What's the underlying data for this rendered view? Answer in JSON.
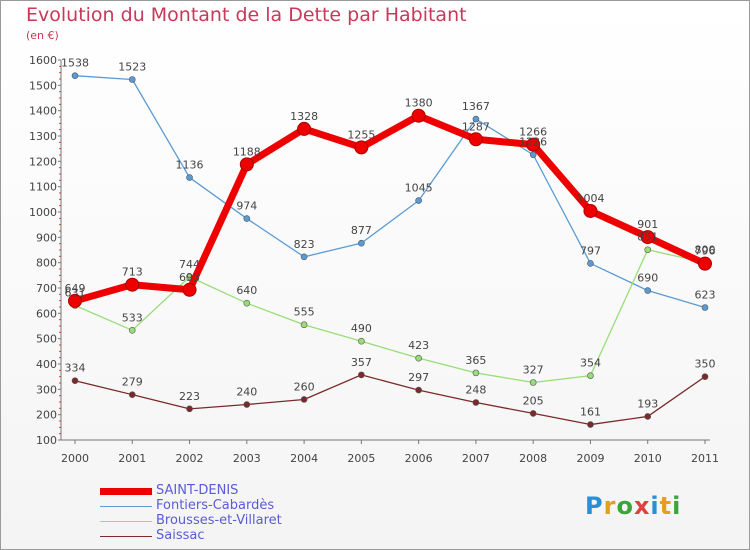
{
  "title": "Evolution du Montant de la Dette par Habitant",
  "subtitle": "(en €)",
  "logo": {
    "text": "Proxiti"
  },
  "colors": {
    "title": "#c8385a",
    "legend_text": "#5b5bd6",
    "axis": "#777777",
    "grid": "#d8d8d8"
  },
  "chart_data": {
    "type": "line",
    "title": "Evolution du Montant de la Dette par Habitant",
    "subtitle": "(en €)",
    "xlabel": "",
    "ylabel": "",
    "x": [
      "2000",
      "2001",
      "2002",
      "2003",
      "2004",
      "2005",
      "2006",
      "2007",
      "2008",
      "2009",
      "2010",
      "2011"
    ],
    "ylim": [
      100,
      1600
    ],
    "yticks": [
      100,
      200,
      300,
      400,
      500,
      600,
      700,
      800,
      900,
      1000,
      1100,
      1200,
      1300,
      1400,
      1500,
      1600
    ],
    "grid": false,
    "legend_position": "bottom-left",
    "series": [
      {
        "name": "SAINT-DENIS",
        "color": "#ee0000",
        "values": [
          649,
          713,
          693,
          1188,
          1328,
          1255,
          1380,
          1287,
          1266,
          1004,
          901,
          796
        ]
      },
      {
        "name": "Fontiers-Cabardès",
        "color": "#5a9bd5",
        "values": [
          1538,
          1523,
          1136,
          974,
          823,
          877,
          1045,
          1367,
          1226,
          797,
          690,
          623
        ]
      },
      {
        "name": "Brousses-et-Villaret",
        "color": "#99dd77",
        "values": [
          631,
          533,
          744,
          640,
          555,
          490,
          423,
          365,
          327,
          354,
          851,
          800
        ]
      },
      {
        "name": "Saissac",
        "color": "#7a2a2a",
        "values": [
          334,
          279,
          223,
          240,
          260,
          357,
          297,
          248,
          205,
          161,
          193,
          350
        ]
      }
    ]
  }
}
